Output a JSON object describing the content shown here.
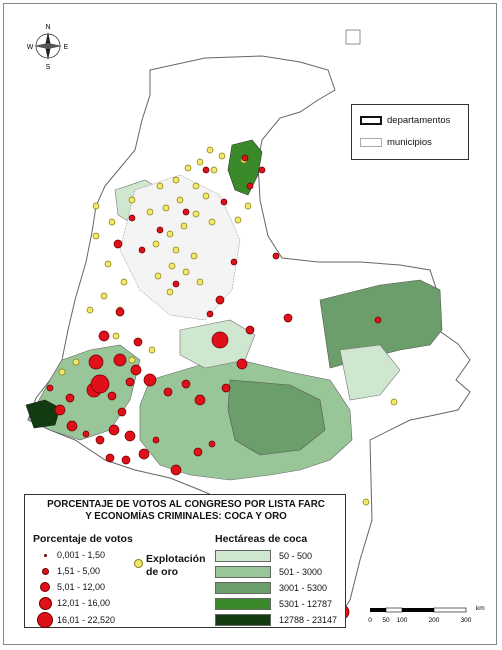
{
  "compass": {
    "n": "N",
    "s": "S",
    "e": "E",
    "w": "W"
  },
  "legend_admin": {
    "departamentos_label": "departamentos",
    "municipios_label": "municipios"
  },
  "legend": {
    "title_line1": "PORCENTAJE DE VOTOS AL CONGRESO POR LISTA FARC",
    "title_line2": "Y ECONOMÍAS CRIMINALES: COCA Y ORO",
    "votes_title": "Porcentaje de votos",
    "votes_classes": [
      "0,001 - 1,50",
      "1,51 - 5,00",
      "5,01 - 12,00",
      "12,01 - 16,00",
      "16,01 - 22,520"
    ],
    "gold_label_line1": "Explotación",
    "gold_label_line2": "de oro",
    "coca_title": "Hectáreas de coca",
    "coca_classes": [
      {
        "label": "50 - 500",
        "color": "#cfe6cf"
      },
      {
        "label": "501 - 3000",
        "color": "#98c698"
      },
      {
        "label": "3001 - 5300",
        "color": "#6b9e6b"
      },
      {
        "label": "5301 - 12787",
        "color": "#3a8a2a"
      },
      {
        "label": "12788 - 23147",
        "color": "#123b12"
      }
    ]
  },
  "scale": {
    "unit": "km",
    "ticks": [
      "0",
      "50",
      "100",
      "200",
      "300"
    ]
  },
  "colors": {
    "vote_dot": "#e0101a",
    "gold_dot": "#f2e86a",
    "border": "#555555"
  }
}
